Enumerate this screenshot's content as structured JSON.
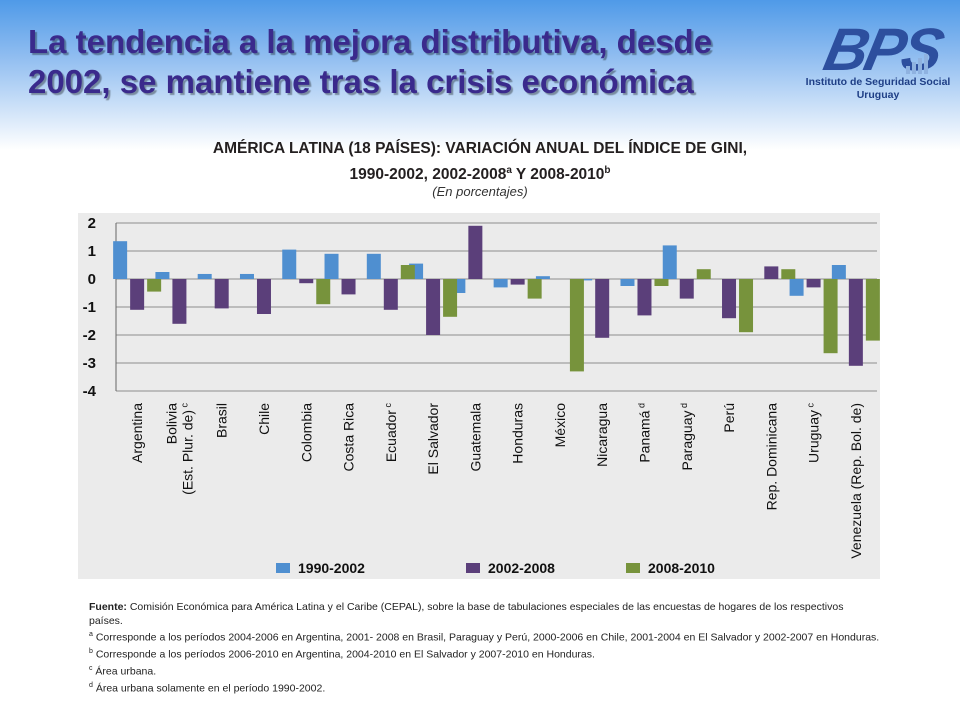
{
  "header": {
    "headline_line1": "La tendencia a la mejora distributiva, desde",
    "headline_line2": "2002, se mantiene tras la crisis económica",
    "logo_text": "BPS",
    "logo_sub_line1": "Instituto de Seguridad Social",
    "logo_sub_line2": "Uruguay"
  },
  "chart_header": {
    "title_line1": "AMÉRICA LATINA (18 PAÍSES): VARIACIÓN ANUAL DEL ÍNDICE DE GINI,",
    "title_line2_a": "1990-2002, 2002-2008",
    "title_sup_a": "a",
    "title_line2_b": " Y 2008-2010",
    "title_sup_b": "b",
    "subtitle": "(En porcentajes)"
  },
  "chart_data": {
    "type": "bar",
    "title": "AMÉRICA LATINA (18 PAÍSES): VARIACIÓN ANUAL DEL ÍNDICE DE GINI, 1990-2002, 2002-2008 a Y 2008-2010 b",
    "subtitle": "(En porcentajes)",
    "ylim": [
      -4,
      2
    ],
    "yticks": [
      2,
      1,
      0,
      -1,
      -2,
      -3,
      -4
    ],
    "grid": true,
    "legend_position": "bottom",
    "categories": [
      {
        "label": "Argentina",
        "sup": ""
      },
      {
        "label": "Bolivia\n(Est. Plur. de)",
        "sup": "c"
      },
      {
        "label": "Brasil",
        "sup": ""
      },
      {
        "label": "Chile",
        "sup": ""
      },
      {
        "label": "Colombia",
        "sup": ""
      },
      {
        "label": "Costa Rica",
        "sup": ""
      },
      {
        "label": "Ecuador",
        "sup": "c"
      },
      {
        "label": "El Salvador",
        "sup": ""
      },
      {
        "label": "Guatemala",
        "sup": ""
      },
      {
        "label": "Honduras",
        "sup": ""
      },
      {
        "label": "México",
        "sup": ""
      },
      {
        "label": "Nicaragua",
        "sup": ""
      },
      {
        "label": "Panamá",
        "sup": "d"
      },
      {
        "label": "Paraguay",
        "sup": "d"
      },
      {
        "label": "Perú",
        "sup": ""
      },
      {
        "label": "Rep. Dominicana",
        "sup": ""
      },
      {
        "label": "Uruguay",
        "sup": "c"
      },
      {
        "label": "Venezuela (Rep. Bol. de)",
        "sup": ""
      }
    ],
    "series": [
      {
        "name": "1990-2002",
        "color": "#4f8fd0",
        "values": [
          1.35,
          0.25,
          0.18,
          0.18,
          1.05,
          0.9,
          0.9,
          0.55,
          -0.5,
          -0.3,
          0.1,
          -0.05,
          -0.25,
          1.2,
          null,
          null,
          -0.6,
          0.5
        ]
      },
      {
        "name": "2002-2008",
        "color": "#5b3f7a",
        "values": [
          -1.1,
          -1.6,
          -1.05,
          -1.25,
          -0.15,
          -0.55,
          -1.1,
          -2.0,
          1.9,
          -0.2,
          null,
          -2.1,
          -1.3,
          -0.7,
          -1.4,
          0.45,
          -0.3,
          -3.1
        ]
      },
      {
        "name": "2008-2010",
        "color": "#77933c",
        "values": [
          -0.45,
          null,
          null,
          null,
          -0.9,
          null,
          0.5,
          -1.35,
          null,
          -0.7,
          -3.3,
          null,
          -0.25,
          0.35,
          -1.9,
          0.35,
          -2.65,
          -2.2
        ]
      }
    ]
  },
  "notes": {
    "source_label": "Fuente:",
    "source_text": " Comisión Económica para América Latina y el Caribe (CEPAL), sobre la base de tabulaciones especiales de las encuestas de hogares de los respectivos países.",
    "a_sup": "a",
    "a_text": " Corresponde a los períodos 2004-2006 en Argentina, 2001- 2008 en Brasil, Paraguay y Perú, 2000-2006 en Chile, 2001-2004 en El Salvador y 2002-2007 en Honduras.",
    "b_sup": "b",
    "b_text": " Corresponde a los períodos 2006-2010 en Argentina, 2004-2010 en El Salvador y 2007-2010 en Honduras.",
    "c_sup": "c",
    "c_text": " Área urbana.",
    "d_sup": "d",
    "d_text": " Área urbana solamente en el período 1990-2002."
  }
}
